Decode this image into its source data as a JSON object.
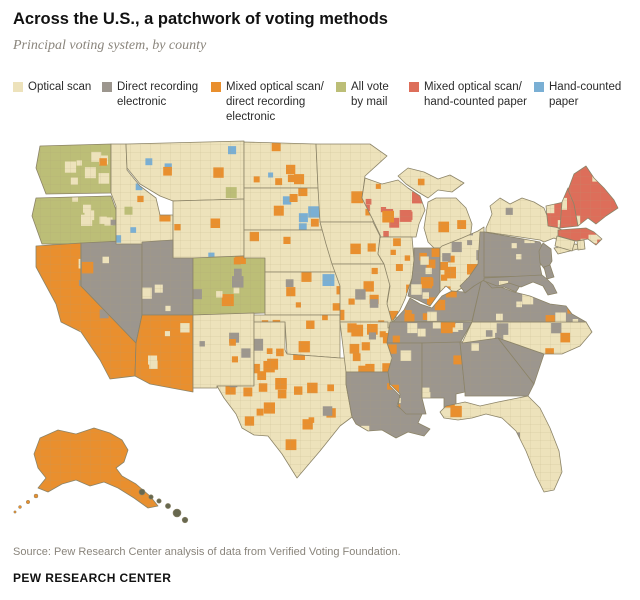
{
  "header": {
    "title": "Across the U.S., a patchwork of voting methods",
    "subtitle": "Principal voting system, by county"
  },
  "legend": {
    "items": [
      {
        "key": "optical",
        "label": "Optical scan",
        "color": "#EDE2BB"
      },
      {
        "key": "dre",
        "label": "Direct recording electronic",
        "color": "#9C968E"
      },
      {
        "key": "mixed_osdre",
        "label": "Mixed optical scan/ direct recording electronic",
        "color": "#E98F2E"
      },
      {
        "key": "mail",
        "label": "All vote by mail",
        "color": "#BCBE77"
      },
      {
        "key": "mixed_oshc",
        "label": "Mixed optical scan/ hand-counted paper",
        "color": "#DD6E5A"
      },
      {
        "key": "hand",
        "label": "Hand-counted paper",
        "color": "#7AAFD4"
      }
    ]
  },
  "map": {
    "palette": {
      "optical": "#EDE2BB",
      "dre": "#9C968E",
      "mixed_osdre": "#E98F2E",
      "mail": "#BCBE77",
      "mixed_oshc": "#DD6E5A",
      "hand": "#7AAFD4",
      "hawaii": "#67684F"
    },
    "border_color": "#8C8468",
    "county_line_color": "#AC9F75",
    "states": [
      {
        "id": "WA",
        "fill": "mail",
        "speckles": {
          "optical": 7,
          "mixed_osdre": 1
        }
      },
      {
        "id": "OR",
        "fill": "mail",
        "speckles": {
          "optical": 6,
          "dre": 1
        }
      },
      {
        "id": "CA",
        "fill": "mixed_osdre",
        "speckles": {
          "optical": 7,
          "dre": 4
        }
      },
      {
        "id": "NV",
        "fill": "dre",
        "speckles": {
          "optical": 2,
          "mixed_osdre": 1
        }
      },
      {
        "id": "ID",
        "fill": "optical",
        "speckles": {
          "hand": 5,
          "mixed_osdre": 2,
          "mail": 1
        }
      },
      {
        "id": "MT",
        "fill": "optical",
        "speckles": {
          "hand": 3,
          "mixed_osdre": 2,
          "mail": 1
        }
      },
      {
        "id": "WY",
        "fill": "optical",
        "speckles": {
          "mixed_osdre": 2,
          "hand": 1
        }
      },
      {
        "id": "UT",
        "fill": "dre",
        "speckles": {
          "optical": 3
        }
      },
      {
        "id": "CO",
        "fill": "mail",
        "speckles": {
          "dre": 3,
          "mixed_osdre": 3,
          "optical": 2
        }
      },
      {
        "id": "AZ",
        "fill": "mixed_osdre",
        "speckles": {
          "optical": 4
        }
      },
      {
        "id": "NM",
        "fill": "optical",
        "speckles": {
          "dre": 3,
          "mixed_osdre": 2
        }
      },
      {
        "id": "ND",
        "fill": "optical",
        "speckles": {
          "mixed_osdre": 6,
          "hand": 1
        }
      },
      {
        "id": "SD",
        "fill": "optical",
        "speckles": {
          "hand": 4,
          "mixed_osdre": 4
        }
      },
      {
        "id": "NE",
        "fill": "optical",
        "speckles": {
          "mixed_osdre": 2
        }
      },
      {
        "id": "KS",
        "fill": "optical",
        "speckles": {
          "mixed_osdre": 5,
          "hand": 1,
          "dre": 1
        }
      },
      {
        "id": "OK",
        "fill": "optical",
        "speckles": {
          "mixed_osdre": 6
        }
      },
      {
        "id": "TX",
        "fill": "optical",
        "speckles": {
          "mixed_osdre": 26,
          "dre": 3
        }
      },
      {
        "id": "MN",
        "fill": "optical",
        "speckles": {
          "mixed_osdre": 2
        }
      },
      {
        "id": "IA",
        "fill": "optical",
        "speckles": {
          "mixed_osdre": 2
        }
      },
      {
        "id": "MO",
        "fill": "optical",
        "speckles": {
          "mixed_osdre": 7,
          "dre": 2
        }
      },
      {
        "id": "AR",
        "fill": "optical",
        "speckles": {
          "mixed_osdre": 11,
          "dre": 1
        }
      },
      {
        "id": "LA",
        "fill": "dre",
        "speckles": {
          "mixed_osdre": 2,
          "optical": 1
        }
      },
      {
        "id": "WI",
        "fill": "optical",
        "speckles": {
          "mixed_oshc": 9,
          "mixed_osdre": 2
        }
      },
      {
        "id": "IL",
        "fill": "optical",
        "speckles": {
          "mixed_osdre": 9,
          "dre": 2
        }
      },
      {
        "id": "MIUP",
        "fill": "optical",
        "speckles": {
          "mixed_osdre": 1
        }
      },
      {
        "id": "MI",
        "fill": "optical",
        "speckles": {
          "mixed_osdre": 2
        }
      },
      {
        "id": "IN",
        "fill": "dre",
        "speckles": {
          "mixed_osdre": 7,
          "optical": 4
        }
      },
      {
        "id": "OH",
        "fill": "optical",
        "speckles": {
          "mixed_osdre": 8,
          "dre": 5
        }
      },
      {
        "id": "KY",
        "fill": "dre",
        "speckles": {
          "mixed_osdre": 7,
          "optical": 2
        }
      },
      {
        "id": "TN",
        "fill": "dre",
        "speckles": {
          "optical": 5,
          "mixed_osdre": 3
        }
      },
      {
        "id": "MS",
        "fill": "dre",
        "speckles": {
          "mixed_osdre": 3,
          "optical": 2
        }
      },
      {
        "id": "AL",
        "fill": "dre",
        "speckles": {
          "optical": 2,
          "mixed_osdre": 1
        }
      },
      {
        "id": "GA",
        "fill": "dre",
        "speckles": {
          "optical": 1
        }
      },
      {
        "id": "FL",
        "fill": "optical",
        "speckles": {
          "mixed_osdre": 7,
          "dre": 1
        }
      },
      {
        "id": "SC",
        "fill": "dre",
        "speckles": {}
      },
      {
        "id": "NC",
        "fill": "optical",
        "speckles": {
          "dre": 5,
          "mixed_osdre": 2
        }
      },
      {
        "id": "VA",
        "fill": "dre",
        "speckles": {
          "optical": 6,
          "mixed_osdre": 2
        }
      },
      {
        "id": "WV",
        "fill": "dre",
        "speckles": {
          "hand": 1
        }
      },
      {
        "id": "PA",
        "fill": "dre",
        "speckles": {
          "optical": 3
        }
      },
      {
        "id": "NY",
        "fill": "optical",
        "speckles": {
          "dre": 2
        }
      },
      {
        "id": "LI",
        "fill": "optical",
        "speckles": {}
      },
      {
        "id": "NJ",
        "fill": "dre",
        "speckles": {}
      },
      {
        "id": "DE",
        "fill": "dre",
        "speckles": {}
      },
      {
        "id": "MD",
        "fill": "dre",
        "speckles": {
          "optical": 2
        }
      },
      {
        "id": "VT",
        "fill": "mixed_oshc",
        "speckles": {
          "optical": 2
        }
      },
      {
        "id": "NH",
        "fill": "mixed_oshc",
        "speckles": {
          "optical": 2
        }
      },
      {
        "id": "ME",
        "fill": "mixed_oshc",
        "speckles": {
          "optical": 2
        }
      },
      {
        "id": "MA",
        "fill": "mixed_oshc",
        "speckles": {
          "optical": 3
        }
      },
      {
        "id": "CT",
        "fill": "optical",
        "speckles": {}
      },
      {
        "id": "RI",
        "fill": "optical",
        "speckles": {}
      },
      {
        "id": "AK",
        "fill": "mixed_osdre",
        "speckles": {}
      },
      {
        "id": "HI",
        "fill": "hawaii",
        "speckles": {}
      }
    ]
  },
  "footer": {
    "source": "Source: Pew Research Center analysis of data from Verified Voting Foundation.",
    "brand": "PEW RESEARCH CENTER"
  }
}
